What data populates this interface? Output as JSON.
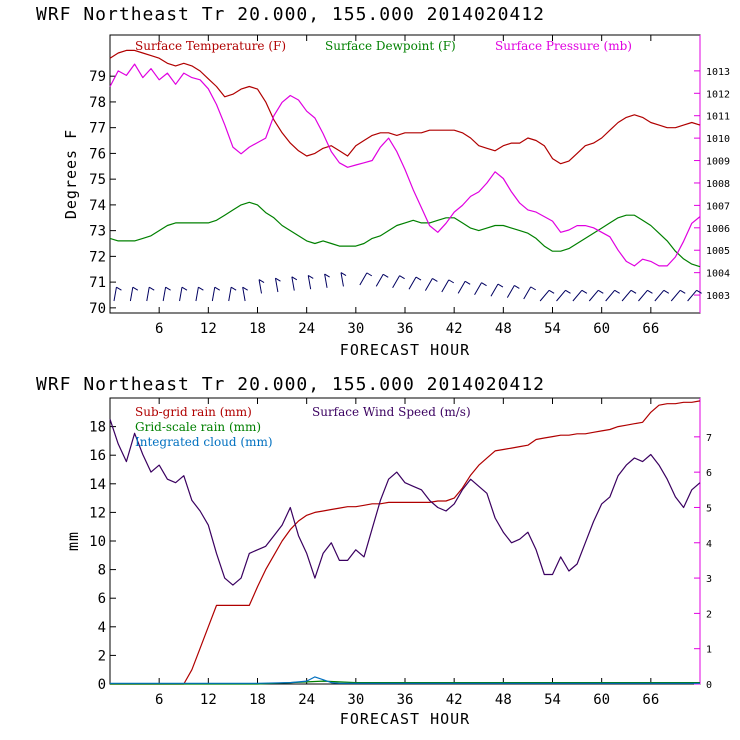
{
  "chart_data": [
    {
      "type": "line",
      "title": "WRF  Northeast Tr  20.000, 155.000  2014020412",
      "xlabel": "FORECAST HOUR",
      "ylabel": "Degrees F",
      "xlim": [
        0,
        72
      ],
      "ylim": [
        69.8,
        80.6
      ],
      "y2lim": [
        1002.2,
        1014.6
      ],
      "xticks": [
        "6",
        "12",
        "18",
        "24",
        "30",
        "36",
        "42",
        "48",
        "54",
        "60",
        "66"
      ],
      "yticks": [
        "70",
        "71",
        "72",
        "73",
        "74",
        "75",
        "76",
        "77",
        "78",
        "79"
      ],
      "y2ticks": [
        "1003",
        "1004",
        "1005",
        "1006",
        "1007",
        "1008",
        "1009",
        "1010",
        "1011",
        "1012",
        "1013"
      ],
      "series": [
        {
          "name": "Surface Temperature (F)",
          "color": "#b00000",
          "axis": "left",
          "x": [
            0,
            1,
            2,
            3,
            4,
            5,
            6,
            7,
            8,
            9,
            10,
            11,
            12,
            13,
            14,
            15,
            16,
            17,
            18,
            19,
            20,
            21,
            22,
            23,
            24,
            25,
            26,
            27,
            28,
            29,
            30,
            31,
            32,
            33,
            34,
            35,
            36,
            37,
            38,
            39,
            40,
            41,
            42,
            43,
            44,
            45,
            46,
            47,
            48,
            49,
            50,
            51,
            52,
            53,
            54,
            55,
            56,
            57,
            58,
            59,
            60,
            61,
            62,
            63,
            64,
            65,
            66,
            67,
            68,
            69,
            70,
            71,
            72
          ],
          "values": [
            79.7,
            79.9,
            80.0,
            80.0,
            79.9,
            79.8,
            79.7,
            79.5,
            79.4,
            79.5,
            79.4,
            79.2,
            78.9,
            78.6,
            78.2,
            78.3,
            78.5,
            78.6,
            78.5,
            78.0,
            77.3,
            76.8,
            76.4,
            76.1,
            75.9,
            76.0,
            76.2,
            76.3,
            76.1,
            75.9,
            76.3,
            76.5,
            76.7,
            76.8,
            76.8,
            76.7,
            76.8,
            76.8,
            76.8,
            76.9,
            76.9,
            76.9,
            76.9,
            76.8,
            76.6,
            76.3,
            76.2,
            76.1,
            76.3,
            76.4,
            76.4,
            76.6,
            76.5,
            76.3,
            75.8,
            75.6,
            75.7,
            76.0,
            76.3,
            76.4,
            76.6,
            76.9,
            77.2,
            77.4,
            77.5,
            77.4,
            77.2,
            77.1,
            77.0,
            77.0,
            77.1,
            77.2,
            77.1
          ]
        },
        {
          "name": "Surface Dewpoint (F)",
          "color": "#008000",
          "axis": "left",
          "x": [
            0,
            1,
            2,
            3,
            4,
            5,
            6,
            7,
            8,
            9,
            10,
            11,
            12,
            13,
            14,
            15,
            16,
            17,
            18,
            19,
            20,
            21,
            22,
            23,
            24,
            25,
            26,
            27,
            28,
            29,
            30,
            31,
            32,
            33,
            34,
            35,
            36,
            37,
            38,
            39,
            40,
            41,
            42,
            43,
            44,
            45,
            46,
            47,
            48,
            49,
            50,
            51,
            52,
            53,
            54,
            55,
            56,
            57,
            58,
            59,
            60,
            61,
            62,
            63,
            64,
            65,
            66,
            67,
            68,
            69,
            70,
            71,
            72
          ],
          "values": [
            72.7,
            72.6,
            72.6,
            72.6,
            72.7,
            72.8,
            73.0,
            73.2,
            73.3,
            73.3,
            73.3,
            73.3,
            73.3,
            73.4,
            73.6,
            73.8,
            74.0,
            74.1,
            74.0,
            73.7,
            73.5,
            73.2,
            73.0,
            72.8,
            72.6,
            72.5,
            72.6,
            72.5,
            72.4,
            72.4,
            72.4,
            72.5,
            72.7,
            72.8,
            73.0,
            73.2,
            73.3,
            73.4,
            73.3,
            73.3,
            73.4,
            73.5,
            73.5,
            73.3,
            73.1,
            73.0,
            73.1,
            73.2,
            73.2,
            73.1,
            73.0,
            72.9,
            72.7,
            72.4,
            72.2,
            72.2,
            72.3,
            72.5,
            72.7,
            72.9,
            73.1,
            73.3,
            73.5,
            73.6,
            73.6,
            73.4,
            73.2,
            72.9,
            72.6,
            72.2,
            71.9,
            71.7,
            71.6
          ]
        },
        {
          "name": "Surface Pressure (mb)",
          "color": "#e000e0",
          "axis": "right",
          "x": [
            0,
            1,
            2,
            3,
            4,
            5,
            6,
            7,
            8,
            9,
            10,
            11,
            12,
            13,
            14,
            15,
            16,
            17,
            18,
            19,
            20,
            21,
            22,
            23,
            24,
            25,
            26,
            27,
            28,
            29,
            30,
            31,
            32,
            33,
            34,
            35,
            36,
            37,
            38,
            39,
            40,
            41,
            42,
            43,
            44,
            45,
            46,
            47,
            48,
            49,
            50,
            51,
            52,
            53,
            54,
            55,
            56,
            57,
            58,
            59,
            60,
            61,
            62,
            63,
            64,
            65,
            66,
            67,
            68,
            69,
            70,
            71,
            72
          ],
          "values": [
            1012.3,
            1013.0,
            1012.8,
            1013.3,
            1012.7,
            1013.1,
            1012.6,
            1012.9,
            1012.4,
            1012.9,
            1012.7,
            1012.6,
            1012.2,
            1011.5,
            1010.6,
            1009.6,
            1009.3,
            1009.6,
            1009.8,
            1010.0,
            1011.0,
            1011.6,
            1011.9,
            1011.7,
            1011.2,
            1010.9,
            1010.2,
            1009.4,
            1008.9,
            1008.7,
            1008.8,
            1008.9,
            1009.0,
            1009.6,
            1010.0,
            1009.4,
            1008.6,
            1007.7,
            1006.9,
            1006.1,
            1005.8,
            1006.2,
            1006.7,
            1007.0,
            1007.4,
            1007.6,
            1008.0,
            1008.5,
            1008.2,
            1007.6,
            1007.1,
            1006.8,
            1006.7,
            1006.5,
            1006.3,
            1005.8,
            1005.9,
            1006.1,
            1006.1,
            1006.0,
            1005.8,
            1005.6,
            1005.0,
            1004.5,
            1004.3,
            1004.6,
            1004.5,
            1004.3,
            1004.3,
            1004.7,
            1005.4,
            1006.2,
            1006.5
          ]
        }
      ],
      "wind_barbs": {
        "color": "#000060",
        "hours": [
          0,
          2,
          4,
          6,
          8,
          10,
          12,
          14,
          16,
          18,
          20,
          22,
          24,
          26,
          28,
          30,
          32,
          34,
          36,
          38,
          40,
          42,
          44,
          46,
          48,
          50,
          52,
          54,
          56,
          58,
          60,
          62,
          64,
          66,
          68,
          70
        ]
      }
    },
    {
      "type": "line",
      "title": "WRF  Northeast Tr  20.000, 155.000  2014020412",
      "xlabel": "FORECAST HOUR",
      "ylabel": "mm",
      "xlim": [
        0,
        72
      ],
      "ylim": [
        0,
        20
      ],
      "y2lim": [
        0,
        8.1
      ],
      "xticks": [
        "6",
        "12",
        "18",
        "24",
        "30",
        "36",
        "42",
        "48",
        "54",
        "60",
        "66"
      ],
      "yticks": [
        "0",
        "2",
        "4",
        "6",
        "8",
        "10",
        "12",
        "14",
        "16",
        "18"
      ],
      "y2ticks": [
        "0",
        "1",
        "2",
        "3",
        "4",
        "5",
        "6",
        "7"
      ],
      "series": [
        {
          "name": "Sub-grid rain (mm)",
          "color": "#b00000",
          "axis": "left",
          "x": [
            0,
            9,
            10,
            11,
            12,
            13,
            14,
            15,
            16,
            17,
            18,
            19,
            20,
            21,
            22,
            23,
            24,
            25,
            26,
            27,
            28,
            29,
            30,
            31,
            32,
            33,
            34,
            35,
            36,
            37,
            38,
            39,
            40,
            41,
            42,
            43,
            44,
            45,
            46,
            47,
            48,
            49,
            50,
            51,
            52,
            53,
            54,
            55,
            56,
            57,
            58,
            59,
            60,
            61,
            62,
            63,
            64,
            65,
            66,
            67,
            68,
            69,
            70,
            71,
            72
          ],
          "values": [
            0,
            0,
            1.0,
            2.5,
            4.0,
            5.5,
            5.5,
            5.5,
            5.5,
            5.5,
            6.8,
            8.0,
            9.0,
            10.0,
            10.8,
            11.4,
            11.8,
            12.0,
            12.1,
            12.2,
            12.3,
            12.4,
            12.4,
            12.5,
            12.6,
            12.6,
            12.7,
            12.7,
            12.7,
            12.7,
            12.7,
            12.7,
            12.8,
            12.8,
            13.0,
            13.7,
            14.6,
            15.3,
            15.8,
            16.3,
            16.4,
            16.5,
            16.6,
            16.7,
            17.1,
            17.2,
            17.3,
            17.4,
            17.4,
            17.5,
            17.5,
            17.6,
            17.7,
            17.8,
            18.0,
            18.1,
            18.2,
            18.3,
            19.0,
            19.5,
            19.6,
            19.6,
            19.7,
            19.7,
            19.8
          ]
        },
        {
          "name": "Grid-scale rain (mm)",
          "color": "#008000",
          "axis": "left",
          "x": [
            0,
            18,
            20,
            22,
            24,
            26,
            28,
            30,
            40,
            50,
            60,
            72
          ],
          "values": [
            0,
            0,
            0.05,
            0.1,
            0.15,
            0.2,
            0.15,
            0.1,
            0.1,
            0.1,
            0.1,
            0.1
          ]
        },
        {
          "name": "Integrated cloud (mm)",
          "color": "#0070c0",
          "axis": "left",
          "x": [
            0,
            18,
            22,
            24,
            25,
            26,
            27,
            28,
            30,
            40,
            50,
            60,
            72
          ],
          "values": [
            0.05,
            0.05,
            0.1,
            0.2,
            0.5,
            0.3,
            0.1,
            0.05,
            0.05,
            0.05,
            0.05,
            0.05,
            0.05
          ]
        },
        {
          "name": "Surface Wind Speed (m/s)",
          "color": "#3a0060",
          "axis": "right",
          "x": [
            0,
            1,
            2,
            3,
            4,
            5,
            6,
            7,
            8,
            9,
            10,
            11,
            12,
            13,
            14,
            15,
            16,
            17,
            18,
            19,
            20,
            21,
            22,
            23,
            24,
            25,
            26,
            27,
            28,
            29,
            30,
            31,
            32,
            33,
            34,
            35,
            36,
            37,
            38,
            39,
            40,
            41,
            42,
            43,
            44,
            45,
            46,
            47,
            48,
            49,
            50,
            51,
            52,
            53,
            54,
            55,
            56,
            57,
            58,
            59,
            60,
            61,
            62,
            63,
            64,
            65,
            66,
            67,
            68,
            69,
            70,
            71,
            72
          ],
          "values": [
            7.5,
            6.8,
            6.3,
            7.1,
            6.5,
            6.0,
            6.2,
            5.8,
            5.7,
            5.9,
            5.2,
            4.9,
            4.5,
            3.7,
            3.0,
            2.8,
            3.0,
            3.7,
            3.8,
            3.9,
            4.2,
            4.5,
            5.0,
            4.2,
            3.7,
            3.0,
            3.7,
            4.0,
            3.5,
            3.5,
            3.8,
            3.6,
            4.4,
            5.2,
            5.8,
            6.0,
            5.7,
            5.6,
            5.5,
            5.2,
            5.0,
            4.9,
            5.1,
            5.5,
            5.8,
            5.6,
            5.4,
            4.7,
            4.3,
            4.0,
            4.1,
            4.3,
            3.8,
            3.1,
            3.1,
            3.6,
            3.2,
            3.4,
            4.0,
            4.6,
            5.1,
            5.3,
            5.9,
            6.2,
            6.4,
            6.3,
            6.5,
            6.2,
            5.8,
            5.3,
            5.0,
            5.5,
            5.7
          ]
        }
      ]
    }
  ]
}
